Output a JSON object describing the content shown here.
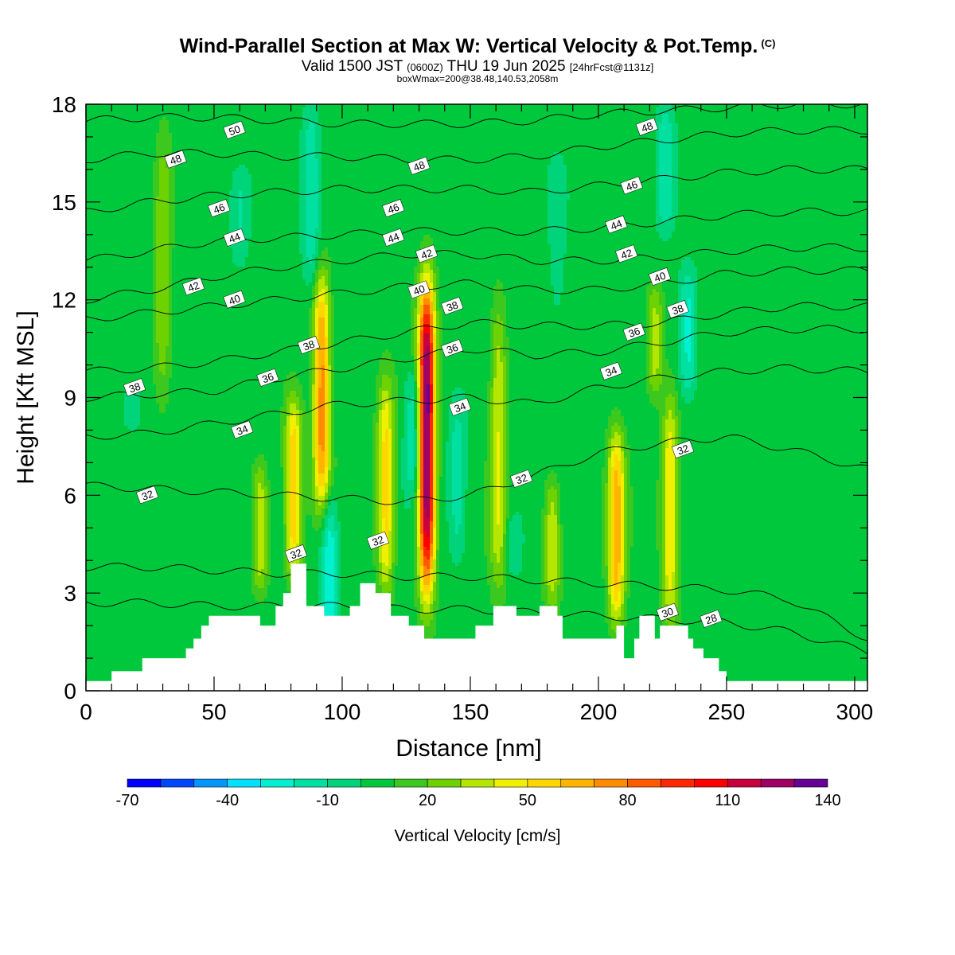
{
  "header": {
    "title": "Wind-Parallel Section at Max W: Vertical Velocity & Pot.Temp.",
    "copyright": "(C)",
    "valid_prefix": "Valid 1500 JST",
    "valid_utc": "(0600Z)",
    "valid_date": "THU 19 Jun 2025",
    "forecast": "[24hrFcst@1131z]",
    "box_info": "boxWmax=200@38.48,140.53,2058m"
  },
  "chart_data": {
    "type": "heatmap",
    "xlabel": "Distance [nm]",
    "ylabel": "Height [Kft MSL]",
    "xlim": [
      0,
      305
    ],
    "ylim": [
      0,
      18
    ],
    "xticks": [
      0,
      50,
      100,
      150,
      200,
      250,
      300
    ],
    "yticks": [
      0,
      3,
      6,
      9,
      12,
      15,
      18
    ],
    "colorbar": {
      "label": "Vertical Velocity [cm/s]",
      "tick_labels": [
        "-70",
        "-40",
        "-10",
        "20",
        "50",
        "80",
        "110",
        "140"
      ],
      "tick_values": [
        -70,
        -40,
        -10,
        20,
        50,
        80,
        110,
        140
      ],
      "bins": [
        -70,
        -60,
        -50,
        -40,
        -30,
        -20,
        -10,
        0,
        10,
        20,
        30,
        40,
        50,
        60,
        70,
        80,
        90,
        100,
        110,
        120,
        130,
        140
      ],
      "colors": [
        "#0000ff",
        "#0046ff",
        "#0096ff",
        "#00e1ff",
        "#00f0d0",
        "#00e0a0",
        "#00d47a",
        "#00c83c",
        "#3cc81e",
        "#6ed200",
        "#b4e600",
        "#f0f000",
        "#ffd700",
        "#ffb400",
        "#ff8c00",
        "#ff5a00",
        "#ff2800",
        "#ff0000",
        "#c8003c",
        "#a00064",
        "#640096"
      ]
    },
    "background_value": 5,
    "updrafts": [
      {
        "x": 133,
        "peak": 130,
        "z_range": [
          3.0,
          12.5
        ]
      },
      {
        "x": 92,
        "peak": 70,
        "z_range": [
          5.5,
          12.8
        ]
      },
      {
        "x": 81,
        "peak": 55,
        "z_range": [
          3.5,
          9.0
        ]
      },
      {
        "x": 117,
        "peak": 50,
        "z_range": [
          3.0,
          9.5
        ]
      },
      {
        "x": 68,
        "peak": 35,
        "z_range": [
          3.0,
          7.0
        ]
      },
      {
        "x": 161,
        "peak": 35,
        "z_range": [
          3.0,
          12.0
        ]
      },
      {
        "x": 182,
        "peak": 35,
        "z_range": [
          2.5,
          6.5
        ]
      },
      {
        "x": 207,
        "peak": 60,
        "z_range": [
          2.0,
          8.0
        ]
      },
      {
        "x": 228,
        "peak": 45,
        "z_range": [
          2.0,
          9.0
        ]
      },
      {
        "x": 30,
        "peak": 25,
        "z_range": [
          9.0,
          17.0
        ]
      },
      {
        "x": 222,
        "peak": 30,
        "z_range": [
          9.0,
          12.5
        ]
      }
    ],
    "downdrafts": [
      {
        "x": 95,
        "peak": -35,
        "z_range": [
          1.5,
          6.0
        ]
      },
      {
        "x": 88,
        "peak": -25,
        "z_range": [
          12.5,
          18.0
        ]
      },
      {
        "x": 128,
        "peak": -25,
        "z_range": [
          6.0,
          10.0
        ]
      },
      {
        "x": 145,
        "peak": -20,
        "z_range": [
          4.0,
          9.0
        ]
      },
      {
        "x": 235,
        "peak": -30,
        "z_range": [
          9.0,
          13.0
        ]
      },
      {
        "x": 226,
        "peak": -25,
        "z_range": [
          14.0,
          18.0
        ]
      },
      {
        "x": 60,
        "peak": -15,
        "z_range": [
          13.0,
          16.0
        ]
      },
      {
        "x": 18,
        "peak": -15,
        "z_range": [
          8.0,
          9.5
        ]
      },
      {
        "x": 167,
        "peak": -15,
        "z_range": [
          3.5,
          5.5
        ]
      },
      {
        "x": 184,
        "peak": -10,
        "z_range": [
          11.0,
          16.0
        ]
      }
    ],
    "terrain": {
      "x": [
        0,
        10,
        10,
        22,
        22,
        39,
        39,
        42,
        42,
        45,
        45,
        48,
        48,
        68,
        68,
        74,
        74,
        77,
        77,
        80,
        80,
        86,
        86,
        93,
        93,
        103,
        103,
        107,
        107,
        113,
        113,
        119,
        119,
        126,
        126,
        132,
        132,
        152,
        152,
        159,
        159,
        168,
        168,
        177,
        177,
        184,
        184,
        186,
        186,
        207,
        207,
        210,
        210,
        214,
        214,
        216,
        216,
        222,
        222,
        224,
        224,
        235,
        235,
        237,
        237,
        241,
        241,
        247,
        247,
        250,
        250,
        262,
        262,
        305
      ],
      "z": [
        0.3,
        0.3,
        0.6,
        0.6,
        1.0,
        1.0,
        1.3,
        1.3,
        1.6,
        1.6,
        2.0,
        2.0,
        2.3,
        2.3,
        2.0,
        2.0,
        2.6,
        2.6,
        3.0,
        3.0,
        3.9,
        3.9,
        2.6,
        2.6,
        2.3,
        2.3,
        2.6,
        2.6,
        3.3,
        3.3,
        3.0,
        3.0,
        2.3,
        2.3,
        2.0,
        2.0,
        1.6,
        1.6,
        2.0,
        2.0,
        2.6,
        2.6,
        2.3,
        2.3,
        2.6,
        2.6,
        2.3,
        2.3,
        1.6,
        1.6,
        2.0,
        2.0,
        1.0,
        1.0,
        1.6,
        1.6,
        2.3,
        2.3,
        1.6,
        1.6,
        2.0,
        2.0,
        1.6,
        1.6,
        1.3,
        1.3,
        1.0,
        1.0,
        0.6,
        0.6,
        0.3,
        0.3,
        0.3,
        0.3
      ]
    },
    "theta_lines": [
      {
        "level": 28,
        "heights": [
          2.7,
          2.7,
          2.6,
          2.6,
          2.6,
          2.5,
          2.5,
          2.4,
          2.3,
          2.2,
          2.1,
          1.8,
          1.2
        ]
      },
      {
        "level": 30,
        "heights": [
          3.8,
          3.8,
          3.7,
          3.6,
          3.6,
          3.5,
          3.5,
          3.4,
          3.3,
          3.2,
          3.1,
          2.8,
          1.6
        ]
      },
      {
        "level": 32,
        "heights": [
          6.3,
          6.2,
          6.1,
          6.0,
          5.9,
          5.8,
          6.0,
          6.6,
          7.3,
          7.6,
          7.8,
          7.4,
          6.8
        ]
      },
      {
        "level": 34,
        "heights": [
          7.8,
          7.9,
          8.2,
          8.5,
          8.8,
          8.9,
          9.0,
          8.8,
          9.3,
          9.6,
          9.8,
          9.9,
          9.8
        ]
      },
      {
        "level": 36,
        "heights": [
          9.0,
          9.1,
          9.2,
          9.6,
          9.9,
          10.2,
          10.5,
          10.3,
          10.4,
          10.7,
          11.0,
          11.1,
          11.1
        ]
      },
      {
        "level": 38,
        "heights": [
          9.8,
          9.9,
          10.1,
          10.4,
          10.7,
          11.0,
          11.3,
          11.2,
          11.2,
          11.3,
          11.6,
          11.8,
          11.8
        ]
      },
      {
        "level": 40,
        "heights": [
          11.4,
          11.6,
          11.8,
          12.0,
          12.2,
          12.4,
          12.5,
          12.3,
          12.3,
          12.5,
          12.8,
          12.9,
          12.9
        ]
      },
      {
        "level": 42,
        "heights": [
          12.0,
          12.3,
          12.7,
          13.0,
          13.2,
          13.4,
          13.4,
          13.2,
          13.2,
          13.3,
          13.5,
          13.6,
          13.6
        ]
      },
      {
        "level": 44,
        "heights": [
          13.2,
          13.5,
          13.8,
          13.9,
          14.0,
          14.1,
          14.1,
          14.1,
          14.2,
          14.4,
          14.6,
          14.7,
          14.7
        ]
      },
      {
        "level": 46,
        "heights": [
          14.7,
          15.0,
          15.2,
          15.3,
          15.4,
          15.4,
          15.4,
          15.3,
          15.5,
          15.7,
          15.9,
          16.0,
          16.0
        ]
      },
      {
        "level": 48,
        "heights": [
          16.3,
          16.5,
          16.5,
          16.4,
          16.4,
          16.3,
          16.3,
          16.4,
          16.7,
          16.9,
          17.1,
          17.2,
          17.2
        ]
      },
      {
        "level": 50,
        "heights": [
          17.5,
          17.6,
          17.6,
          17.5,
          17.4,
          17.4,
          17.4,
          17.5,
          17.7,
          17.8,
          17.9,
          18.0,
          18.0
        ]
      }
    ],
    "theta_x": [
      0,
      25,
      50,
      75,
      100,
      125,
      150,
      175,
      200,
      225,
      250,
      275,
      305
    ],
    "contour_labels": [
      {
        "text": "50",
        "x": 58,
        "z": 17.2
      },
      {
        "text": "48",
        "x": 35,
        "z": 16.3
      },
      {
        "text": "48",
        "x": 130,
        "z": 16.1
      },
      {
        "text": "48",
        "x": 219,
        "z": 17.3
      },
      {
        "text": "46",
        "x": 52,
        "z": 14.8
      },
      {
        "text": "46",
        "x": 120,
        "z": 14.8
      },
      {
        "text": "46",
        "x": 213,
        "z": 15.5
      },
      {
        "text": "44",
        "x": 58,
        "z": 13.9
      },
      {
        "text": "44",
        "x": 120,
        "z": 13.9
      },
      {
        "text": "44",
        "x": 207,
        "z": 14.3
      },
      {
        "text": "42",
        "x": 42,
        "z": 12.4
      },
      {
        "text": "42",
        "x": 133,
        "z": 13.4
      },
      {
        "text": "42",
        "x": 211,
        "z": 13.4
      },
      {
        "text": "40",
        "x": 58,
        "z": 12.0
      },
      {
        "text": "40",
        "x": 130,
        "z": 12.3
      },
      {
        "text": "40",
        "x": 224,
        "z": 12.7
      },
      {
        "text": "38",
        "x": 19,
        "z": 9.3
      },
      {
        "text": "38",
        "x": 87,
        "z": 10.6
      },
      {
        "text": "38",
        "x": 143,
        "z": 11.8
      },
      {
        "text": "38",
        "x": 231,
        "z": 11.7
      },
      {
        "text": "36",
        "x": 71,
        "z": 9.6
      },
      {
        "text": "36",
        "x": 143,
        "z": 10.5
      },
      {
        "text": "36",
        "x": 214,
        "z": 11.0
      },
      {
        "text": "34",
        "x": 61,
        "z": 8.0
      },
      {
        "text": "34",
        "x": 146,
        "z": 8.7
      },
      {
        "text": "34",
        "x": 205,
        "z": 9.8
      },
      {
        "text": "32",
        "x": 24,
        "z": 6.0
      },
      {
        "text": "32",
        "x": 82,
        "z": 4.2
      },
      {
        "text": "32",
        "x": 114,
        "z": 4.6
      },
      {
        "text": "32",
        "x": 170,
        "z": 6.5
      },
      {
        "text": "32",
        "x": 233,
        "z": 7.4
      },
      {
        "text": "30",
        "x": 227,
        "z": 2.4
      },
      {
        "text": "28",
        "x": 244,
        "z": 2.2
      }
    ]
  }
}
